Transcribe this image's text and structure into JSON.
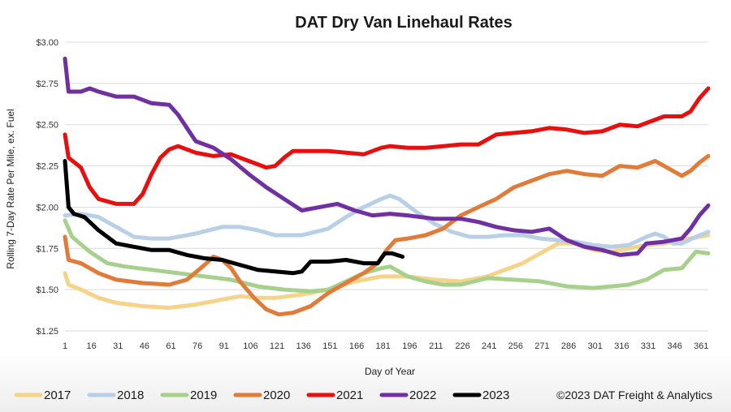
{
  "chart_data": {
    "type": "line",
    "title": "DAT Dry Van Linehaul Rates",
    "xlabel": "Day of Year",
    "ylabel": "Rolling 7-Day Rate Per Mile, ex. Fuel",
    "xlim": [
      1,
      365
    ],
    "ylim": [
      1.25,
      3.0
    ],
    "x_ticks": [
      1,
      16,
      31,
      46,
      61,
      76,
      91,
      106,
      121,
      136,
      151,
      166,
      181,
      196,
      211,
      226,
      241,
      256,
      271,
      286,
      301,
      316,
      331,
      346,
      361
    ],
    "y_ticks": [
      {
        "value": 1.25,
        "label": "$1.25"
      },
      {
        "value": 1.5,
        "label": "$1.50"
      },
      {
        "value": 1.75,
        "label": "$1.75"
      },
      {
        "value": 2.0,
        "label": "$2.00"
      },
      {
        "value": 2.25,
        "label": "$2.25"
      },
      {
        "value": 2.5,
        "label": "$2.50"
      },
      {
        "value": 2.75,
        "label": "$2.75"
      },
      {
        "value": 3.0,
        "label": "$3.00"
      }
    ],
    "grid": "horizontal",
    "legend_position": "bottom",
    "copyright": "©2023 DAT Freight & Analytics",
    "series": [
      {
        "name": "2017",
        "color": "#F5D48A",
        "points": [
          [
            1,
            1.6
          ],
          [
            3,
            1.53
          ],
          [
            10,
            1.5
          ],
          [
            20,
            1.45
          ],
          [
            30,
            1.42
          ],
          [
            45,
            1.4
          ],
          [
            60,
            1.39
          ],
          [
            75,
            1.41
          ],
          [
            90,
            1.44
          ],
          [
            100,
            1.46
          ],
          [
            110,
            1.45
          ],
          [
            120,
            1.45
          ],
          [
            135,
            1.47
          ],
          [
            150,
            1.5
          ],
          [
            165,
            1.55
          ],
          [
            180,
            1.58
          ],
          [
            195,
            1.58
          ],
          [
            210,
            1.56
          ],
          [
            225,
            1.55
          ],
          [
            240,
            1.58
          ],
          [
            250,
            1.62
          ],
          [
            260,
            1.66
          ],
          [
            270,
            1.72
          ],
          [
            280,
            1.78
          ],
          [
            290,
            1.78
          ],
          [
            300,
            1.74
          ],
          [
            310,
            1.73
          ],
          [
            320,
            1.75
          ],
          [
            330,
            1.77
          ],
          [
            340,
            1.78
          ],
          [
            350,
            1.8
          ],
          [
            360,
            1.82
          ],
          [
            365,
            1.83
          ]
        ]
      },
      {
        "name": "2018",
        "color": "#B8CFE6",
        "points": [
          [
            1,
            1.95
          ],
          [
            10,
            1.96
          ],
          [
            20,
            1.94
          ],
          [
            30,
            1.88
          ],
          [
            40,
            1.82
          ],
          [
            50,
            1.81
          ],
          [
            60,
            1.81
          ],
          [
            75,
            1.84
          ],
          [
            90,
            1.88
          ],
          [
            100,
            1.88
          ],
          [
            110,
            1.86
          ],
          [
            120,
            1.83
          ],
          [
            135,
            1.83
          ],
          [
            150,
            1.87
          ],
          [
            160,
            1.94
          ],
          [
            170,
            2.0
          ],
          [
            180,
            2.05
          ],
          [
            185,
            2.07
          ],
          [
            190,
            2.05
          ],
          [
            200,
            1.97
          ],
          [
            210,
            1.9
          ],
          [
            220,
            1.85
          ],
          [
            230,
            1.82
          ],
          [
            240,
            1.82
          ],
          [
            250,
            1.83
          ],
          [
            260,
            1.83
          ],
          [
            270,
            1.81
          ],
          [
            280,
            1.8
          ],
          [
            290,
            1.79
          ],
          [
            300,
            1.77
          ],
          [
            310,
            1.76
          ],
          [
            320,
            1.77
          ],
          [
            330,
            1.82
          ],
          [
            335,
            1.84
          ],
          [
            340,
            1.82
          ],
          [
            345,
            1.78
          ],
          [
            350,
            1.78
          ],
          [
            358,
            1.82
          ],
          [
            365,
            1.85
          ]
        ]
      },
      {
        "name": "2019",
        "color": "#A8D08D",
        "points": [
          [
            1,
            1.92
          ],
          [
            5,
            1.82
          ],
          [
            15,
            1.73
          ],
          [
            25,
            1.66
          ],
          [
            35,
            1.64
          ],
          [
            50,
            1.62
          ],
          [
            65,
            1.6
          ],
          [
            80,
            1.58
          ],
          [
            95,
            1.56
          ],
          [
            110,
            1.52
          ],
          [
            125,
            1.5
          ],
          [
            140,
            1.49
          ],
          [
            150,
            1.5
          ],
          [
            160,
            1.55
          ],
          [
            170,
            1.6
          ],
          [
            180,
            1.63
          ],
          [
            185,
            1.64
          ],
          [
            195,
            1.58
          ],
          [
            205,
            1.55
          ],
          [
            215,
            1.53
          ],
          [
            225,
            1.53
          ],
          [
            240,
            1.57
          ],
          [
            255,
            1.56
          ],
          [
            270,
            1.55
          ],
          [
            285,
            1.52
          ],
          [
            300,
            1.51
          ],
          [
            310,
            1.52
          ],
          [
            320,
            1.53
          ],
          [
            330,
            1.56
          ],
          [
            340,
            1.62
          ],
          [
            350,
            1.63
          ],
          [
            358,
            1.73
          ],
          [
            365,
            1.72
          ]
        ]
      },
      {
        "name": "2020",
        "color": "#E07B39",
        "points": [
          [
            1,
            1.82
          ],
          [
            3,
            1.68
          ],
          [
            10,
            1.66
          ],
          [
            20,
            1.6
          ],
          [
            30,
            1.56
          ],
          [
            45,
            1.54
          ],
          [
            60,
            1.53
          ],
          [
            70,
            1.56
          ],
          [
            80,
            1.65
          ],
          [
            85,
            1.7
          ],
          [
            90,
            1.68
          ],
          [
            95,
            1.63
          ],
          [
            100,
            1.55
          ],
          [
            108,
            1.45
          ],
          [
            115,
            1.38
          ],
          [
            122,
            1.35
          ],
          [
            130,
            1.36
          ],
          [
            140,
            1.4
          ],
          [
            150,
            1.48
          ],
          [
            160,
            1.54
          ],
          [
            170,
            1.6
          ],
          [
            178,
            1.66
          ],
          [
            183,
            1.74
          ],
          [
            188,
            1.8
          ],
          [
            195,
            1.81
          ],
          [
            205,
            1.83
          ],
          [
            215,
            1.87
          ],
          [
            225,
            1.95
          ],
          [
            235,
            2.0
          ],
          [
            245,
            2.05
          ],
          [
            255,
            2.12
          ],
          [
            265,
            2.16
          ],
          [
            275,
            2.2
          ],
          [
            285,
            2.22
          ],
          [
            295,
            2.2
          ],
          [
            305,
            2.19
          ],
          [
            315,
            2.25
          ],
          [
            325,
            2.24
          ],
          [
            335,
            2.28
          ],
          [
            345,
            2.22
          ],
          [
            350,
            2.19
          ],
          [
            355,
            2.22
          ],
          [
            360,
            2.27
          ],
          [
            365,
            2.31
          ]
        ]
      },
      {
        "name": "2021",
        "color": "#E8100E",
        "points": [
          [
            1,
            2.44
          ],
          [
            3,
            2.3
          ],
          [
            10,
            2.24
          ],
          [
            15,
            2.12
          ],
          [
            20,
            2.05
          ],
          [
            30,
            2.02
          ],
          [
            40,
            2.02
          ],
          [
            45,
            2.08
          ],
          [
            50,
            2.2
          ],
          [
            55,
            2.3
          ],
          [
            60,
            2.35
          ],
          [
            65,
            2.37
          ],
          [
            75,
            2.33
          ],
          [
            85,
            2.31
          ],
          [
            95,
            2.32
          ],
          [
            105,
            2.28
          ],
          [
            115,
            2.24
          ],
          [
            120,
            2.25
          ],
          [
            125,
            2.3
          ],
          [
            130,
            2.34
          ],
          [
            140,
            2.34
          ],
          [
            150,
            2.34
          ],
          [
            160,
            2.33
          ],
          [
            170,
            2.32
          ],
          [
            180,
            2.36
          ],
          [
            185,
            2.37
          ],
          [
            195,
            2.36
          ],
          [
            205,
            2.36
          ],
          [
            215,
            2.37
          ],
          [
            225,
            2.38
          ],
          [
            235,
            2.38
          ],
          [
            245,
            2.44
          ],
          [
            255,
            2.45
          ],
          [
            265,
            2.46
          ],
          [
            275,
            2.48
          ],
          [
            285,
            2.47
          ],
          [
            295,
            2.45
          ],
          [
            305,
            2.46
          ],
          [
            315,
            2.5
          ],
          [
            325,
            2.49
          ],
          [
            335,
            2.53
          ],
          [
            340,
            2.55
          ],
          [
            350,
            2.55
          ],
          [
            355,
            2.58
          ],
          [
            360,
            2.66
          ],
          [
            365,
            2.72
          ]
        ]
      },
      {
        "name": "2022",
        "color": "#7030A0",
        "points": [
          [
            1,
            2.9
          ],
          [
            3,
            2.7
          ],
          [
            10,
            2.7
          ],
          [
            15,
            2.72
          ],
          [
            20,
            2.7
          ],
          [
            30,
            2.67
          ],
          [
            40,
            2.67
          ],
          [
            50,
            2.63
          ],
          [
            60,
            2.62
          ],
          [
            65,
            2.56
          ],
          [
            70,
            2.48
          ],
          [
            75,
            2.4
          ],
          [
            85,
            2.36
          ],
          [
            95,
            2.29
          ],
          [
            105,
            2.2
          ],
          [
            115,
            2.12
          ],
          [
            125,
            2.05
          ],
          [
            135,
            1.98
          ],
          [
            145,
            2.0
          ],
          [
            155,
            2.02
          ],
          [
            165,
            1.98
          ],
          [
            175,
            1.95
          ],
          [
            185,
            1.96
          ],
          [
            195,
            1.95
          ],
          [
            210,
            1.93
          ],
          [
            225,
            1.93
          ],
          [
            235,
            1.91
          ],
          [
            245,
            1.88
          ],
          [
            255,
            1.86
          ],
          [
            265,
            1.85
          ],
          [
            275,
            1.87
          ],
          [
            285,
            1.8
          ],
          [
            295,
            1.76
          ],
          [
            305,
            1.74
          ],
          [
            315,
            1.71
          ],
          [
            325,
            1.72
          ],
          [
            330,
            1.78
          ],
          [
            340,
            1.79
          ],
          [
            350,
            1.81
          ],
          [
            355,
            1.87
          ],
          [
            360,
            1.95
          ],
          [
            365,
            2.01
          ]
        ]
      },
      {
        "name": "2023",
        "color": "#000000",
        "points": [
          [
            1,
            2.28
          ],
          [
            3,
            2.0
          ],
          [
            6,
            1.96
          ],
          [
            12,
            1.94
          ],
          [
            20,
            1.86
          ],
          [
            30,
            1.78
          ],
          [
            40,
            1.76
          ],
          [
            50,
            1.74
          ],
          [
            60,
            1.74
          ],
          [
            70,
            1.71
          ],
          [
            80,
            1.69
          ],
          [
            90,
            1.68
          ],
          [
            100,
            1.65
          ],
          [
            110,
            1.62
          ],
          [
            120,
            1.61
          ],
          [
            130,
            1.6
          ],
          [
            135,
            1.61
          ],
          [
            140,
            1.67
          ],
          [
            150,
            1.67
          ],
          [
            160,
            1.68
          ],
          [
            170,
            1.66
          ],
          [
            178,
            1.66
          ],
          [
            182,
            1.72
          ],
          [
            186,
            1.72
          ],
          [
            192,
            1.7
          ]
        ]
      }
    ]
  }
}
